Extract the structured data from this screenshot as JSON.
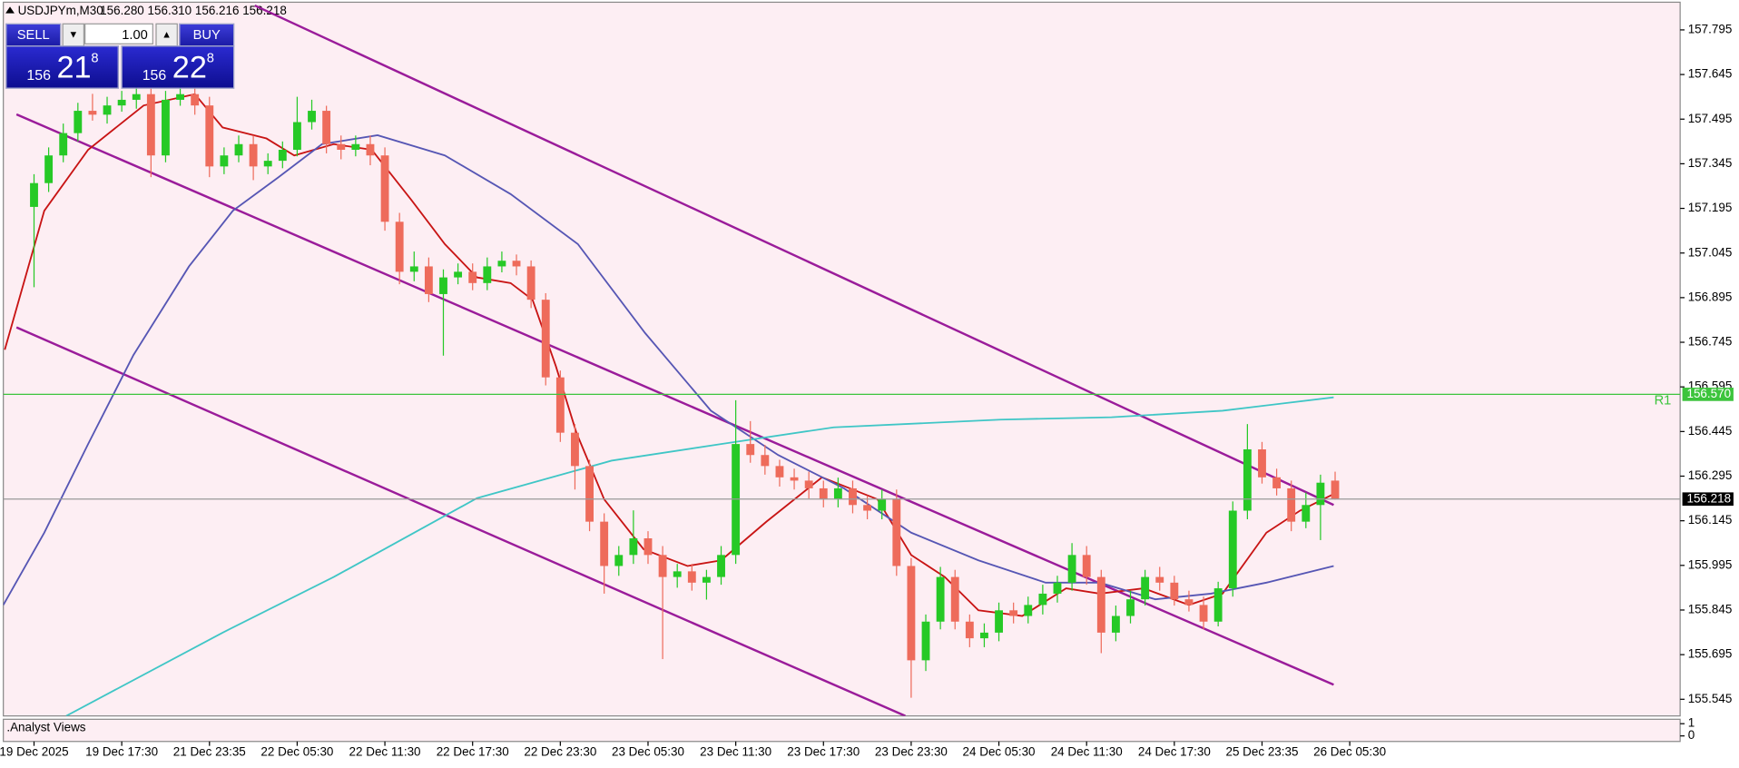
{
  "header": {
    "symbol": "USDJPYm,M30",
    "quote": "156.280 156.310 156.216 156.218"
  },
  "trade_panel": {
    "sell": "SELL",
    "buy": "BUY",
    "volume": "1.00",
    "sell_big": "156",
    "sell_main": "21",
    "sell_sup": "8",
    "buy_big": "156",
    "buy_main": "22",
    "buy_sup": "8"
  },
  "chart_data": {
    "type": "candlestick",
    "up_color": "#26c926",
    "down_color": "#ee6b5b",
    "xlim": [
      -2.1,
      112.6
    ],
    "ylim": [
      155.489,
      157.888
    ],
    "yticks": [
      157.795,
      157.645,
      157.495,
      157.345,
      157.195,
      157.045,
      156.895,
      156.745,
      156.595,
      156.445,
      156.295,
      156.145,
      155.995,
      155.845,
      155.695,
      155.545
    ],
    "xticks": [
      {
        "value": 0,
        "label": "19 Dec 2025"
      },
      {
        "value": 6,
        "label": "19 Dec 17:30"
      },
      {
        "value": 12,
        "label": "21 Dec 23:35"
      },
      {
        "value": 18,
        "label": "22 Dec 05:30"
      },
      {
        "value": 24,
        "label": "22 Dec 11:30"
      },
      {
        "value": 30,
        "label": "22 Dec 17:30"
      },
      {
        "value": 36,
        "label": "22 Dec 23:30"
      },
      {
        "value": 42,
        "label": "23 Dec 05:30"
      },
      {
        "value": 48,
        "label": "23 Dec 11:30"
      },
      {
        "value": 54,
        "label": "23 Dec 17:30"
      },
      {
        "value": 60,
        "label": "23 Dec 23:30"
      },
      {
        "value": 66,
        "label": "24 Dec 05:30"
      },
      {
        "value": 72,
        "label": "24 Dec 11:30"
      },
      {
        "value": 78,
        "label": "24 Dec 17:30"
      },
      {
        "value": 84,
        "label": "25 Dec 23:35"
      },
      {
        "value": 90,
        "label": "26 Dec 05:30"
      }
    ],
    "open": [
      157.2,
      157.28,
      157.373,
      157.448,
      157.523,
      157.51,
      157.541,
      157.56,
      157.579,
      157.373,
      157.56,
      157.579,
      157.541,
      157.336,
      157.373,
      157.411,
      157.336,
      157.355,
      157.392,
      157.485,
      157.523,
      157.411,
      157.392,
      157.411,
      157.373,
      157.15,
      156.982,
      157.0,
      156.907,
      156.963,
      156.982,
      156.944,
      157.0,
      157.019,
      157.0,
      156.888,
      156.627,
      156.441,
      156.329,
      156.142,
      155.993,
      156.03,
      156.086,
      156.03,
      155.956,
      155.975,
      155.937,
      155.956,
      156.03,
      156.403,
      156.366,
      156.329,
      156.291,
      156.28,
      156.254,
      156.217,
      156.254,
      156.198,
      156.179,
      156.217,
      155.993,
      155.676,
      155.806,
      155.956,
      155.806,
      155.75,
      155.769,
      155.844,
      155.825,
      155.862,
      155.9,
      155.937,
      156.03,
      155.956,
      155.769,
      155.825,
      155.881,
      155.956,
      155.937,
      155.881,
      155.862,
      155.806,
      155.918,
      156.179,
      156.385,
      156.291,
      156.254,
      156.142,
      156.198,
      156.28
    ],
    "high": [
      157.31,
      157.4,
      157.48,
      157.55,
      157.58,
      157.57,
      157.59,
      157.61,
      157.6,
      157.59,
      157.61,
      157.6,
      157.57,
      157.4,
      157.44,
      157.44,
      157.38,
      157.42,
      157.57,
      157.56,
      157.54,
      157.44,
      157.44,
      157.44,
      157.4,
      157.18,
      157.05,
      157.03,
      156.99,
      157.01,
      157.01,
      157.03,
      157.05,
      157.04,
      157.02,
      156.91,
      156.65,
      156.47,
      156.35,
      156.17,
      156.06,
      156.18,
      156.11,
      156.06,
      156.0,
      156.0,
      155.98,
      156.06,
      156.55,
      156.48,
      156.4,
      156.35,
      156.32,
      156.31,
      156.28,
      156.29,
      156.28,
      156.23,
      156.25,
      156.25,
      156.02,
      155.83,
      155.99,
      155.98,
      155.83,
      155.8,
      155.87,
      155.87,
      155.89,
      155.93,
      155.96,
      156.07,
      156.06,
      155.98,
      155.86,
      155.91,
      155.98,
      155.99,
      155.96,
      155.91,
      155.89,
      155.94,
      156.21,
      156.47,
      156.41,
      156.32,
      156.28,
      156.24,
      156.3,
      156.31
    ],
    "low": [
      156.93,
      157.25,
      157.35,
      157.42,
      157.49,
      157.48,
      157.52,
      157.53,
      157.3,
      157.35,
      157.54,
      157.51,
      157.3,
      157.31,
      157.35,
      157.29,
      157.31,
      157.33,
      157.37,
      157.46,
      157.38,
      157.36,
      157.37,
      157.34,
      157.12,
      156.94,
      156.95,
      156.88,
      156.7,
      156.94,
      156.92,
      156.92,
      156.98,
      156.97,
      156.86,
      156.6,
      156.41,
      156.25,
      156.11,
      155.9,
      155.96,
      156.0,
      156.0,
      155.68,
      155.92,
      155.91,
      155.88,
      155.93,
      156.0,
      156.34,
      156.3,
      156.26,
      156.25,
      156.22,
      156.19,
      156.19,
      156.17,
      156.15,
      156.15,
      155.96,
      155.55,
      155.64,
      155.78,
      155.78,
      155.72,
      155.72,
      155.74,
      155.8,
      155.8,
      155.83,
      155.87,
      155.91,
      155.93,
      155.7,
      155.74,
      155.8,
      155.86,
      155.91,
      155.86,
      155.84,
      155.78,
      155.79,
      155.89,
      156.15,
      156.27,
      156.23,
      156.11,
      156.12,
      156.08,
      156.216
    ],
    "close": [
      157.28,
      157.373,
      157.448,
      157.523,
      157.51,
      157.541,
      157.56,
      157.579,
      157.373,
      157.56,
      157.579,
      157.541,
      157.336,
      157.373,
      157.411,
      157.336,
      157.355,
      157.392,
      157.485,
      157.523,
      157.411,
      157.392,
      157.411,
      157.373,
      157.15,
      156.982,
      157.0,
      156.907,
      156.963,
      156.982,
      156.944,
      157.0,
      157.019,
      157.0,
      156.888,
      156.627,
      156.441,
      156.329,
      156.142,
      155.993,
      156.03,
      156.086,
      156.03,
      155.956,
      155.975,
      155.937,
      155.956,
      156.03,
      156.403,
      156.366,
      156.329,
      156.291,
      156.28,
      156.254,
      156.217,
      156.254,
      156.198,
      156.179,
      156.217,
      155.993,
      155.676,
      155.806,
      155.956,
      155.806,
      155.75,
      155.769,
      155.844,
      155.825,
      155.862,
      155.9,
      155.937,
      156.03,
      155.956,
      155.769,
      155.825,
      155.881,
      155.956,
      155.937,
      155.881,
      155.862,
      155.806,
      155.918,
      156.179,
      156.385,
      156.291,
      156.254,
      156.142,
      156.198,
      156.273,
      156.218
    ],
    "lines": [
      {
        "color": "#c81414",
        "x": [
          -2,
          0.7,
          3.7,
          7.5,
          11,
          12.9,
          15.9,
          17.8,
          20.5,
          23.1,
          25.8,
          28.1,
          30.3,
          32.6,
          34.1,
          35.7,
          37.1,
          39,
          41.7,
          44.7,
          47,
          50.1,
          53.9,
          57.7,
          60,
          62.3,
          64.6,
          67.6,
          70.6,
          72.9,
          75.9,
          79,
          81.3,
          84.3,
          86.6,
          88.9
        ],
        "values": [
          156.72,
          157.187,
          157.392,
          157.541,
          157.579,
          157.467,
          157.43,
          157.373,
          157.411,
          157.392,
          157.224,
          157.075,
          156.963,
          156.944,
          156.888,
          156.664,
          156.441,
          156.217,
          156.049,
          155.993,
          156.012,
          156.142,
          156.291,
          156.217,
          156.03,
          155.956,
          155.844,
          155.825,
          155.918,
          155.9,
          155.918,
          155.862,
          155.9,
          156.105,
          156.179,
          156.235
        ]
      },
      {
        "color": "#5656b4",
        "x": [
          -2.1,
          0.7,
          3.7,
          6.8,
          10.6,
          13.6,
          16.7,
          19.7,
          23.5,
          28.1,
          32.6,
          37.2,
          41.8,
          46.3,
          50.9,
          55.4,
          60,
          64.6,
          69.2,
          72.9,
          76.7,
          80.5,
          84.3,
          88.9
        ],
        "values": [
          155.862,
          156.105,
          156.403,
          156.702,
          157,
          157.187,
          157.299,
          157.411,
          157.441,
          157.373,
          157.243,
          157.075,
          156.776,
          156.515,
          156.366,
          156.254,
          156.105,
          156.012,
          155.937,
          155.937,
          155.881,
          155.9,
          155.937,
          155.993
        ]
      },
      {
        "color": "#3fc6c6",
        "x": [
          2.2,
          12.9,
          20.5,
          30.3,
          39.5,
          47,
          54.7,
          66.1,
          73.7,
          81.3,
          88.9
        ],
        "values": [
          155.489,
          155.769,
          155.956,
          156.221,
          156.347,
          156.403,
          156.459,
          156.485,
          156.493,
          156.515,
          156.56
        ]
      }
    ],
    "trendlines": [
      {
        "color": "#9a1c9a",
        "x": [
          15.1,
          88.9
        ],
        "values": [
          157.877,
          156.198
        ]
      },
      {
        "color": "#9a1c9a",
        "x": [
          -1.2,
          88.9
        ],
        "values": [
          157.511,
          155.594
        ]
      },
      {
        "color": "#9a1c9a",
        "x": [
          -1.2,
          59.6
        ],
        "values": [
          156.795,
          155.489
        ]
      }
    ],
    "levels": [
      {
        "name": "R1",
        "value": 156.57,
        "value_label": "156.570",
        "color": "#3cc43c"
      }
    ],
    "current_price": {
      "value": 156.218,
      "value_label": "156.218"
    },
    "subwindow": {
      "name": ".Analyst Views",
      "yticks": [
        1,
        0
      ]
    }
  }
}
